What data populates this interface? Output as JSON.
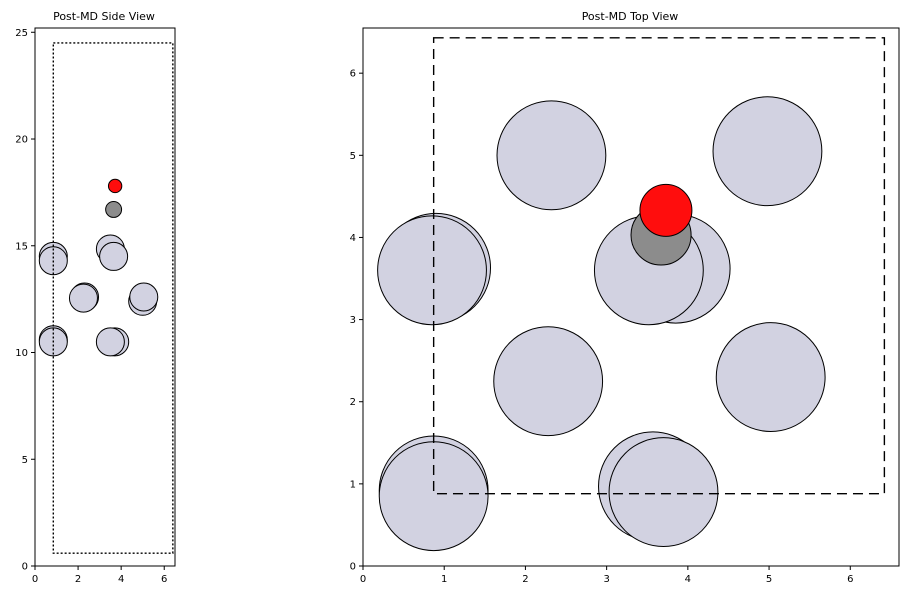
{
  "chart_data": [
    {
      "type": "scatter",
      "title": "Post-MD Side View",
      "xlabel": "",
      "ylabel": "",
      "xlim": [
        0,
        6.5
      ],
      "ylim": [
        0,
        25.2
      ],
      "xticks": [
        0,
        2,
        4,
        6
      ],
      "yticks": [
        0,
        5,
        10,
        15,
        20,
        25
      ],
      "grid": false,
      "cell_box": {
        "x": [
          0.85,
          6.4
        ],
        "y": [
          0.6,
          24.5
        ],
        "style": "dotted"
      },
      "atoms": [
        {
          "x": 0.85,
          "y": 10.6,
          "r": 0.65,
          "color": "#d2d2e1"
        },
        {
          "x": 0.85,
          "y": 10.5,
          "r": 0.65,
          "color": "#d2d2e1"
        },
        {
          "x": 3.7,
          "y": 10.5,
          "r": 0.65,
          "color": "#d2d2e1"
        },
        {
          "x": 3.5,
          "y": 10.5,
          "r": 0.65,
          "color": "#d2d2e1"
        },
        {
          "x": 2.3,
          "y": 12.6,
          "r": 0.65,
          "color": "#d2d2e1"
        },
        {
          "x": 2.25,
          "y": 12.55,
          "r": 0.65,
          "color": "#d2d2e1"
        },
        {
          "x": 5.0,
          "y": 12.4,
          "r": 0.65,
          "color": "#d2d2e1"
        },
        {
          "x": 5.05,
          "y": 12.6,
          "r": 0.65,
          "color": "#d2d2e1"
        },
        {
          "x": 0.85,
          "y": 14.5,
          "r": 0.65,
          "color": "#d2d2e1"
        },
        {
          "x": 0.85,
          "y": 14.3,
          "r": 0.65,
          "color": "#d2d2e1"
        },
        {
          "x": 3.5,
          "y": 14.85,
          "r": 0.65,
          "color": "#d2d2e1"
        },
        {
          "x": 3.65,
          "y": 14.5,
          "r": 0.65,
          "color": "#d2d2e1"
        },
        {
          "x": 3.65,
          "y": 16.7,
          "r": 0.37,
          "color": "#8c8c8c"
        },
        {
          "x": 3.72,
          "y": 17.8,
          "r": 0.31,
          "color": "#ff0d0d"
        }
      ]
    },
    {
      "type": "scatter",
      "title": "Post-MD Top View",
      "xlabel": "",
      "ylabel": "",
      "xlim": [
        0,
        6.6
      ],
      "ylim": [
        0,
        6.55
      ],
      "xticks": [
        0,
        1,
        2,
        3,
        4,
        5,
        6
      ],
      "yticks": [
        0,
        1,
        2,
        3,
        4,
        5,
        6
      ],
      "grid": false,
      "cell_box": {
        "x": [
          0.87,
          6.42
        ],
        "y": [
          0.88,
          6.43
        ],
        "style": "dashed"
      },
      "atoms": [
        {
          "x": 0.87,
          "y": 0.92,
          "r": 0.67,
          "color": "#d2d2e1"
        },
        {
          "x": 0.87,
          "y": 0.85,
          "r": 0.67,
          "color": "#d2d2e1"
        },
        {
          "x": 3.57,
          "y": 0.97,
          "r": 0.67,
          "color": "#d2d2e1"
        },
        {
          "x": 3.7,
          "y": 0.9,
          "r": 0.67,
          "color": "#d2d2e1"
        },
        {
          "x": 2.28,
          "y": 2.25,
          "r": 0.67,
          "color": "#d2d2e1"
        },
        {
          "x": 5.02,
          "y": 2.3,
          "r": 0.67,
          "color": "#d2d2e1"
        },
        {
          "x": 0.9,
          "y": 3.63,
          "r": 0.67,
          "color": "#d2d2e1"
        },
        {
          "x": 0.85,
          "y": 3.6,
          "r": 0.67,
          "color": "#d2d2e1"
        },
        {
          "x": 3.85,
          "y": 3.62,
          "r": 0.67,
          "color": "#d2d2e1"
        },
        {
          "x": 3.52,
          "y": 3.6,
          "r": 0.67,
          "color": "#d2d2e1"
        },
        {
          "x": 2.32,
          "y": 5.0,
          "r": 0.67,
          "color": "#d2d2e1"
        },
        {
          "x": 4.98,
          "y": 5.05,
          "r": 0.67,
          "color": "#d2d2e1"
        },
        {
          "x": 3.67,
          "y": 4.03,
          "r": 0.37,
          "color": "#8c8c8c"
        },
        {
          "x": 3.73,
          "y": 4.33,
          "r": 0.32,
          "color": "#ff0d0d"
        }
      ]
    }
  ]
}
